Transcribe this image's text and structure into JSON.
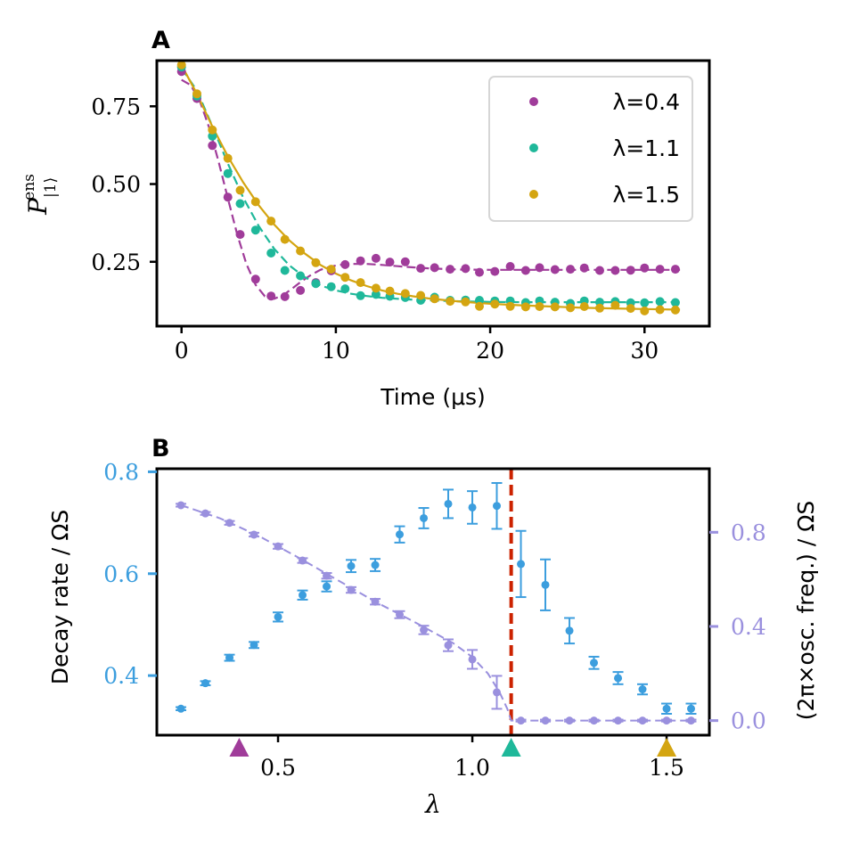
{
  "colors": {
    "purple": "#a03c9a",
    "teal": "#1fb89a",
    "gold": "#d4a511",
    "blue": "#3c9ede",
    "lavender": "#9a90de",
    "red": "#cc2200"
  },
  "chart_data": [
    {
      "panel": "A",
      "type": "line",
      "xlabel": "Time (μs)",
      "ylabel": "P|1⟩ ens",
      "xlim": [
        -1.6,
        34.2
      ],
      "ylim": [
        0.043,
        0.897
      ],
      "xticks": [
        0,
        10,
        20,
        30
      ],
      "yticks": [
        0.25,
        0.5,
        0.75
      ],
      "xtick_labels": [
        "0",
        "10",
        "20",
        "30"
      ],
      "ytick_labels": [
        "0.25",
        "0.50",
        "0.75"
      ],
      "grid": false,
      "legend_placement": "top-right",
      "series": [
        {
          "name": "λ=0.4",
          "color": "#a03c9a",
          "fit_style": "dashed",
          "x": [
            0,
            1,
            2,
            3,
            3.8,
            4.8,
            5.8,
            6.7,
            7.7,
            8.7,
            9.7,
            10.6,
            11.6,
            12.6,
            13.5,
            14.5,
            15.5,
            16.4,
            17.4,
            18.4,
            19.3,
            20.3,
            21.3,
            22.3,
            23.2,
            24.2,
            25.2,
            26.1,
            27.1,
            28.1,
            29.1,
            30,
            31,
            32
          ],
          "y": [
            0.862,
            0.775,
            0.624,
            0.458,
            0.338,
            0.194,
            0.14,
            0.138,
            0.158,
            0.183,
            0.221,
            0.241,
            0.253,
            0.261,
            0.249,
            0.25,
            0.229,
            0.231,
            0.226,
            0.228,
            0.216,
            0.219,
            0.235,
            0.222,
            0.231,
            0.225,
            0.226,
            0.23,
            0.222,
            0.222,
            0.223,
            0.23,
            0.226,
            0.226
          ],
          "fit_x": [
            0,
            0.6,
            1.2,
            1.8,
            2.4,
            3,
            3.6,
            4.2,
            4.8,
            5.4,
            6,
            6.6,
            7.2,
            7.8,
            8.4,
            9,
            9.6,
            10.2,
            11,
            12,
            13,
            14,
            15,
            16,
            18,
            20,
            22,
            24,
            26,
            28,
            30,
            32.3
          ],
          "fit_y": [
            0.835,
            0.818,
            0.765,
            0.68,
            0.572,
            0.454,
            0.339,
            0.244,
            0.176,
            0.139,
            0.131,
            0.143,
            0.165,
            0.188,
            0.208,
            0.224,
            0.234,
            0.24,
            0.243,
            0.243,
            0.24,
            0.236,
            0.232,
            0.229,
            0.225,
            0.224,
            0.224,
            0.224,
            0.224,
            0.224,
            0.224,
            0.224
          ]
        },
        {
          "name": "λ=1.1",
          "color": "#1fb89a",
          "fit_style": "dashed",
          "x": [
            0,
            1,
            2,
            3,
            3.8,
            4.8,
            5.8,
            6.7,
            7.7,
            8.7,
            9.7,
            10.6,
            11.6,
            12.6,
            13.5,
            14.5,
            15.5,
            16.4,
            17.4,
            18.4,
            19.3,
            20.3,
            21.3,
            22.3,
            23.2,
            24.2,
            25.2,
            26.1,
            27.1,
            28.1,
            29.1,
            30,
            31,
            32
          ],
          "y": [
            0.876,
            0.783,
            0.654,
            0.534,
            0.437,
            0.352,
            0.278,
            0.222,
            0.205,
            0.18,
            0.17,
            0.163,
            0.141,
            0.145,
            0.139,
            0.135,
            0.126,
            0.136,
            0.126,
            0.127,
            0.126,
            0.124,
            0.124,
            0.119,
            0.124,
            0.12,
            0.116,
            0.124,
            0.12,
            0.122,
            0.118,
            0.118,
            0.122,
            0.119
          ],
          "fit_x": [
            0,
            1,
            2,
            3,
            4,
            5,
            6,
            7,
            8,
            9,
            10,
            11,
            12,
            13,
            14,
            15,
            16,
            18,
            20,
            22,
            24,
            26,
            28,
            30,
            32.3
          ],
          "fit_y": [
            0.872,
            0.8,
            0.686,
            0.566,
            0.456,
            0.365,
            0.292,
            0.238,
            0.2,
            0.174,
            0.158,
            0.147,
            0.14,
            0.134,
            0.131,
            0.128,
            0.126,
            0.123,
            0.121,
            0.12,
            0.12,
            0.12,
            0.12,
            0.12,
            0.12
          ]
        },
        {
          "name": "λ=1.5",
          "color": "#d4a511",
          "fit_style": "solid",
          "x": [
            0,
            1,
            2,
            3,
            3.8,
            4.8,
            5.8,
            6.7,
            7.7,
            8.7,
            9.7,
            10.6,
            11.6,
            12.6,
            13.5,
            14.5,
            15.5,
            16.4,
            17.4,
            18.4,
            19.3,
            20.3,
            21.3,
            22.3,
            23.2,
            24.2,
            25.2,
            26.1,
            27.1,
            28.1,
            29.1,
            30,
            31,
            32
          ],
          "y": [
            0.883,
            0.79,
            0.674,
            0.583,
            0.48,
            0.443,
            0.381,
            0.322,
            0.285,
            0.247,
            0.226,
            0.2,
            0.183,
            0.165,
            0.156,
            0.148,
            0.142,
            0.131,
            0.123,
            0.121,
            0.107,
            0.114,
            0.107,
            0.105,
            0.106,
            0.105,
            0.102,
            0.106,
            0.101,
            0.11,
            0.1,
            0.092,
            0.096,
            0.095
          ],
          "fit_x": [
            0,
            1,
            2,
            3,
            4,
            5,
            6,
            7,
            8,
            9,
            10,
            11,
            12,
            13,
            14,
            15,
            16,
            18,
            20,
            22,
            24,
            26,
            28,
            30,
            32.3
          ],
          "fit_y": [
            0.882,
            0.79,
            0.685,
            0.589,
            0.505,
            0.432,
            0.37,
            0.318,
            0.276,
            0.24,
            0.212,
            0.19,
            0.172,
            0.158,
            0.147,
            0.139,
            0.132,
            0.122,
            0.115,
            0.11,
            0.106,
            0.102,
            0.1,
            0.098,
            0.096
          ]
        }
      ]
    },
    {
      "panel": "B",
      "type": "scatter",
      "xlabel": "λ",
      "ylabel_left": "Decay rate / ΩS",
      "ylabel_right": "(2π×osc. freq.) / ΩS",
      "xlim": [
        0.188,
        1.61
      ],
      "ylim_left": [
        0.283,
        0.806
      ],
      "ylim_right": [
        -0.062,
        1.07
      ],
      "xticks": [
        0.5,
        1.0,
        1.5
      ],
      "xtick_labels": [
        "0.5",
        "1.0",
        "1.5"
      ],
      "yticks_left": [
        0.4,
        0.6,
        0.8
      ],
      "ytick_labels_left": [
        "0.4",
        "0.6",
        "0.8"
      ],
      "yticks_right": [
        0.0,
        0.4,
        0.8
      ],
      "ytick_labels_right": [
        "0.0",
        "0.4",
        "0.8"
      ],
      "grid": false,
      "critical_line": {
        "x": 1.1,
        "color": "#cc2200",
        "style": "dashed"
      },
      "markers": [
        {
          "x": 0.4,
          "color": "#a03c9a"
        },
        {
          "x": 1.1,
          "color": "#1fb89a"
        },
        {
          "x": 1.5,
          "color": "#d4a511"
        }
      ],
      "series": [
        {
          "name": "Decay rate",
          "axis": "left",
          "color": "#3c9ede",
          "x": [
            0.25,
            0.313,
            0.375,
            0.438,
            0.5,
            0.563,
            0.625,
            0.688,
            0.75,
            0.813,
            0.875,
            0.938,
            1.0,
            1.063,
            1.125,
            1.188,
            1.25,
            1.313,
            1.375,
            1.438,
            1.5,
            1.563
          ],
          "y": [
            0.335,
            0.385,
            0.435,
            0.46,
            0.515,
            0.558,
            0.575,
            0.615,
            0.617,
            0.677,
            0.709,
            0.737,
            0.73,
            0.733,
            0.619,
            0.578,
            0.488,
            0.425,
            0.395,
            0.373,
            0.335,
            0.335
          ],
          "err": [
            0.003,
            0.004,
            0.006,
            0.006,
            0.009,
            0.009,
            0.01,
            0.012,
            0.012,
            0.016,
            0.02,
            0.028,
            0.032,
            0.045,
            0.065,
            0.05,
            0.025,
            0.012,
            0.012,
            0.01,
            0.01,
            0.01
          ]
        },
        {
          "name": "Oscillation frequency",
          "axis": "right",
          "color": "#9a90de",
          "fit_style": "dashed",
          "x": [
            0.25,
            0.313,
            0.375,
            0.438,
            0.5,
            0.563,
            0.625,
            0.688,
            0.75,
            0.813,
            0.875,
            0.938,
            1.0,
            1.063,
            1.125,
            1.188,
            1.25,
            1.313,
            1.375,
            1.438,
            1.5,
            1.563
          ],
          "y": [
            0.915,
            0.88,
            0.84,
            0.79,
            0.74,
            0.68,
            0.615,
            0.555,
            0.505,
            0.45,
            0.385,
            0.32,
            0.26,
            0.12,
            0.0,
            0.0,
            0.0,
            0.0,
            0.0,
            0.0,
            0.0,
            0.0
          ],
          "err": [
            0.006,
            0.006,
            0.008,
            0.008,
            0.01,
            0.01,
            0.012,
            0.012,
            0.012,
            0.015,
            0.018,
            0.025,
            0.04,
            0.07,
            0.004,
            0.004,
            0.004,
            0.004,
            0.004,
            0.004,
            0.004,
            0.004
          ],
          "fit_x": [
            0.25,
            0.35,
            0.45,
            0.55,
            0.65,
            0.75,
            0.85,
            0.95,
            1.0,
            1.04,
            1.07,
            1.09,
            1.1,
            1.11,
            1.563
          ],
          "fit_y": [
            0.915,
            0.86,
            0.785,
            0.695,
            0.6,
            0.505,
            0.42,
            0.33,
            0.27,
            0.2,
            0.12,
            0.05,
            0.0,
            0.0,
            0.0
          ]
        }
      ]
    }
  ]
}
